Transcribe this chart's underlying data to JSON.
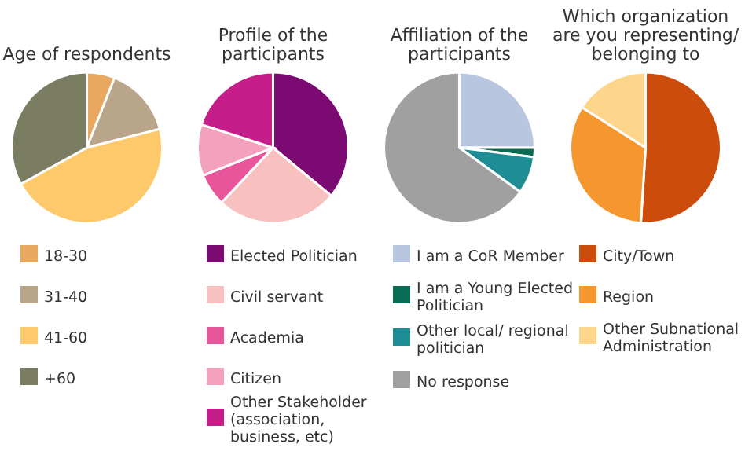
{
  "chart_data": [
    {
      "type": "pie",
      "title": "Age of respondents",
      "categories": [
        "18-30",
        "31-40",
        "41-60",
        "+60"
      ],
      "values": [
        6,
        15,
        46,
        33
      ],
      "colors": [
        "#e8a860",
        "#b8a58a",
        "#fdc96a",
        "#7a7d62"
      ],
      "legend": "bottom"
    },
    {
      "type": "pie",
      "title": "Profile of the participants",
      "categories": [
        "Elected Politician",
        "Civil servant",
        "Academia",
        "Citizen",
        "Other Stakeholder (association, business, etc)"
      ],
      "values": [
        36,
        26,
        7,
        11,
        20
      ],
      "colors": [
        "#7b0a72",
        "#f9c0c0",
        "#e8559a",
        "#f3a1bd",
        "#c51d8a"
      ],
      "legend": "bottom"
    },
    {
      "type": "pie",
      "title": "Affiliation of the participants",
      "categories": [
        "I am a CoR Member",
        "I am a Young Elected Politician",
        "Other local/ regional politician",
        "No response"
      ],
      "values": [
        25,
        2,
        8,
        65
      ],
      "colors": [
        "#b8c6e0",
        "#0a6b55",
        "#1e8e94",
        "#a0a0a0"
      ],
      "legend": "bottom"
    },
    {
      "type": "pie",
      "title": "Which organization are you representing/ belonging to",
      "categories": [
        "City/Town",
        "Region",
        "Other Subnational Administration"
      ],
      "values": [
        51,
        33,
        16
      ],
      "colors": [
        "#cc4d0b",
        "#f5962e",
        "#fdd68c"
      ],
      "legend": "bottom"
    }
  ]
}
